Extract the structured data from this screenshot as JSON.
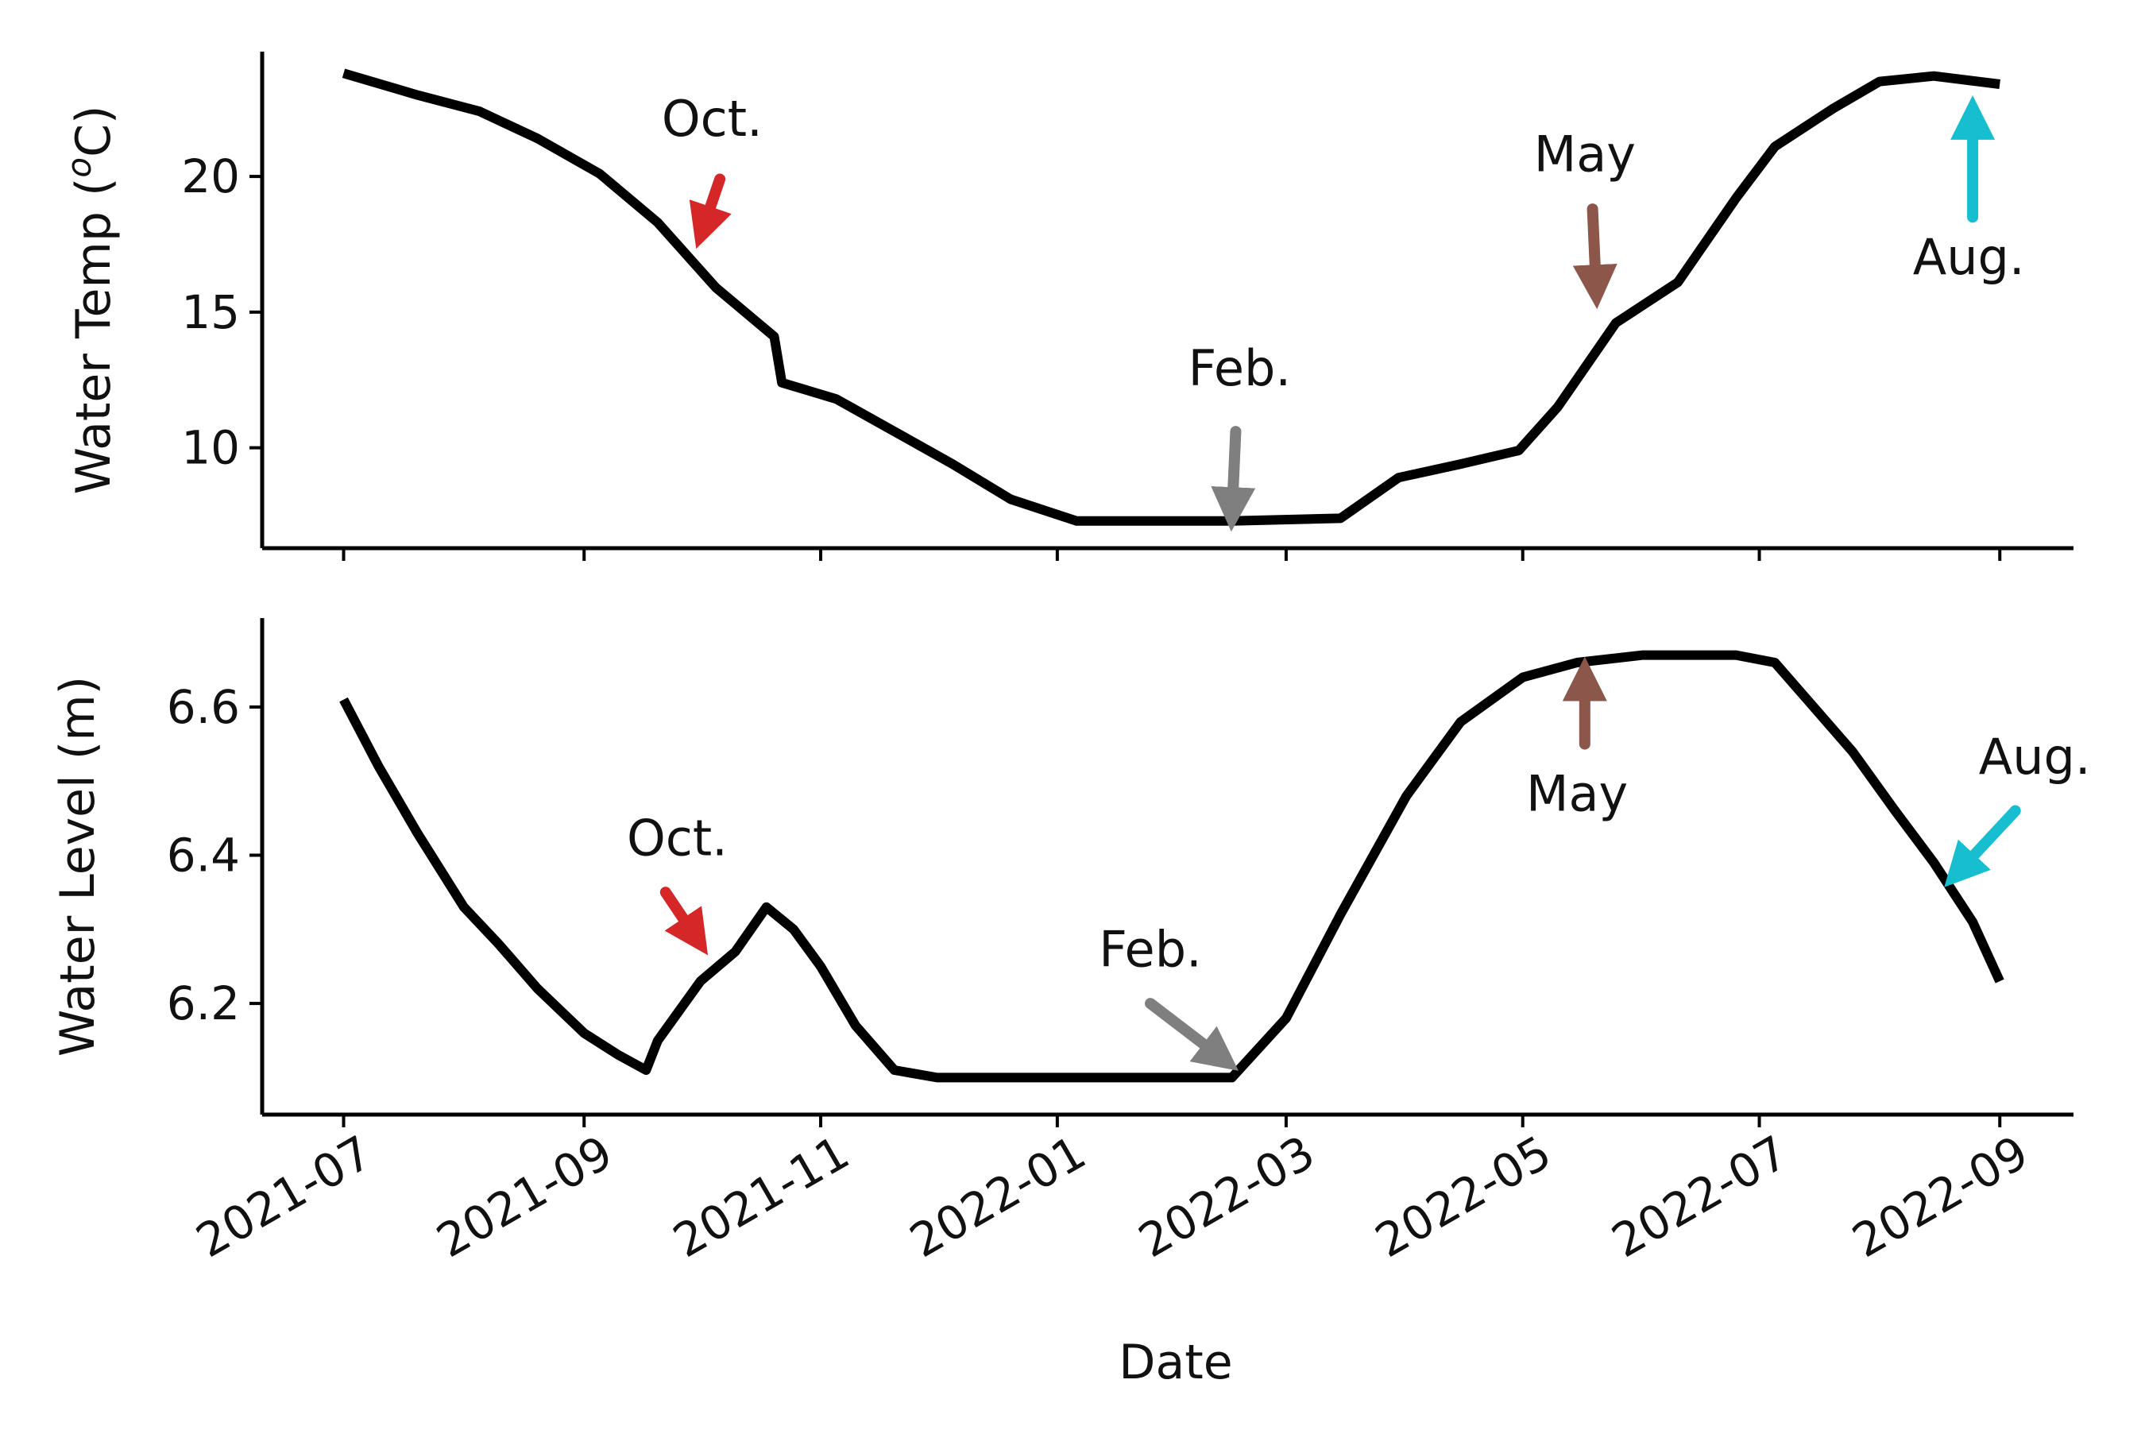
{
  "chart_data": [
    {
      "type": "line",
      "ylabel": "Water Temp (°C)",
      "ylabel_parts": {
        "text": "Water Temp (",
        "sup": "o",
        "unit": "C)"
      },
      "xlabel": "",
      "yticks": [
        10,
        15,
        20
      ],
      "ylim": [
        6.3,
        24.6
      ],
      "xlim": [
        "2021-06-10",
        "2022-09-20"
      ],
      "grid": false,
      "series": [
        {
          "color": "#000000",
          "x": [
            "2021-07-01",
            "2021-07-20",
            "2021-08-05",
            "2021-08-20",
            "2021-09-05",
            "2021-09-20",
            "2021-10-05",
            "2021-10-20",
            "2021-10-22",
            "2021-11-05",
            "2021-11-20",
            "2021-12-05",
            "2021-12-20",
            "2022-01-06",
            "2022-01-20",
            "2022-02-15",
            "2022-03-15",
            "2022-03-30",
            "2022-04-15",
            "2022-04-30",
            "2022-05-10",
            "2022-05-25",
            "2022-06-10",
            "2022-06-25",
            "2022-07-05",
            "2022-07-20",
            "2022-08-01",
            "2022-08-15",
            "2022-09-01"
          ],
          "y": [
            23.8,
            23.0,
            22.4,
            21.4,
            20.1,
            18.3,
            15.9,
            14.1,
            12.4,
            11.8,
            10.6,
            9.4,
            8.1,
            7.3,
            7.3,
            7.3,
            7.4,
            8.9,
            9.4,
            9.9,
            11.5,
            14.6,
            16.1,
            19.2,
            21.1,
            22.5,
            23.5,
            23.7,
            23.4
          ]
        }
      ],
      "annotations": [
        {
          "text": "Oct.",
          "color": "#d62728",
          "x": "2021-10-01",
          "y": 17.8,
          "label_at": "2021-10-04",
          "label_y": 21.5,
          "arrow_from": [
            "2021-10-06",
            19.9
          ]
        },
        {
          "text": "Feb.",
          "color": "#7f7f7f",
          "x": "2022-02-15",
          "y": 7.4,
          "label_at": "2022-02-17",
          "label_y": 12.3,
          "arrow_from": [
            "2022-02-16",
            10.6
          ]
        },
        {
          "text": "May",
          "color": "#8c564b",
          "x": "2022-05-20",
          "y": 15.6,
          "label_at": "2022-05-17",
          "label_y": 20.2,
          "arrow_from": [
            "2022-05-19",
            18.8
          ]
        },
        {
          "text": "Aug.",
          "color": "#17becf",
          "x": "2022-08-25",
          "y": 22.5,
          "label_at": "2022-08-24",
          "label_y": 16.4,
          "arrow_from": [
            "2022-08-25",
            18.5
          ]
        }
      ]
    },
    {
      "type": "line",
      "ylabel": "Water Level (m)",
      "xlabel": "Date",
      "yticks": [
        6.2,
        6.4,
        6.6
      ],
      "ylim": [
        6.05,
        6.72
      ],
      "xlim": [
        "2021-06-10",
        "2022-09-20"
      ],
      "xticks": [
        "2021-07",
        "2021-09",
        "2021-11",
        "2022-01",
        "2022-03",
        "2022-05",
        "2022-07",
        "2022-09"
      ],
      "grid": false,
      "series": [
        {
          "color": "#000000",
          "x": [
            "2021-07-01",
            "2021-07-10",
            "2021-07-20",
            "2021-08-01",
            "2021-08-10",
            "2021-08-20",
            "2021-09-01",
            "2021-09-10",
            "2021-09-17",
            "2021-09-20",
            "2021-10-01",
            "2021-10-10",
            "2021-10-18",
            "2021-10-25",
            "2021-11-01",
            "2021-11-10",
            "2021-11-20",
            "2021-12-01",
            "2021-12-15",
            "2022-01-01",
            "2022-01-15",
            "2022-02-01",
            "2022-02-15",
            "2022-03-01",
            "2022-03-15",
            "2022-04-01",
            "2022-04-15",
            "2022-05-01",
            "2022-05-15",
            "2022-06-01",
            "2022-06-15",
            "2022-06-25",
            "2022-07-05",
            "2022-07-15",
            "2022-07-25",
            "2022-08-05",
            "2022-08-15",
            "2022-08-25",
            "2022-09-01"
          ],
          "y": [
            6.61,
            6.52,
            6.43,
            6.33,
            6.28,
            6.22,
            6.16,
            6.13,
            6.11,
            6.15,
            6.23,
            6.27,
            6.33,
            6.3,
            6.25,
            6.17,
            6.11,
            6.1,
            6.1,
            6.1,
            6.1,
            6.1,
            6.1,
            6.18,
            6.32,
            6.48,
            6.58,
            6.64,
            6.66,
            6.67,
            6.67,
            6.67,
            6.66,
            6.6,
            6.54,
            6.46,
            6.39,
            6.31,
            6.23
          ]
        }
      ],
      "annotations": [
        {
          "text": "Oct.",
          "color": "#d62728",
          "x": "2021-10-01",
          "y": 6.28,
          "label_at": "2021-09-25",
          "label_y": 6.4,
          "arrow_from": [
            "2021-09-22",
            6.35
          ]
        },
        {
          "text": "Feb.",
          "color": "#7f7f7f",
          "x": "2022-02-14",
          "y": 6.12,
          "label_at": "2022-01-25",
          "label_y": 6.25,
          "arrow_from": [
            "2022-01-25",
            6.2
          ]
        },
        {
          "text": "May",
          "color": "#8c564b",
          "x": "2022-05-17",
          "y": 6.65,
          "label_at": "2022-05-15",
          "label_y": 6.46,
          "arrow_from": [
            "2022-05-17",
            6.55
          ]
        },
        {
          "text": "Aug.",
          "color": "#17becf",
          "x": "2022-08-20",
          "y": 6.37,
          "label_at": "2022-09-10",
          "label_y": 6.51,
          "arrow_from": [
            "2022-09-05",
            6.46
          ]
        }
      ]
    }
  ]
}
